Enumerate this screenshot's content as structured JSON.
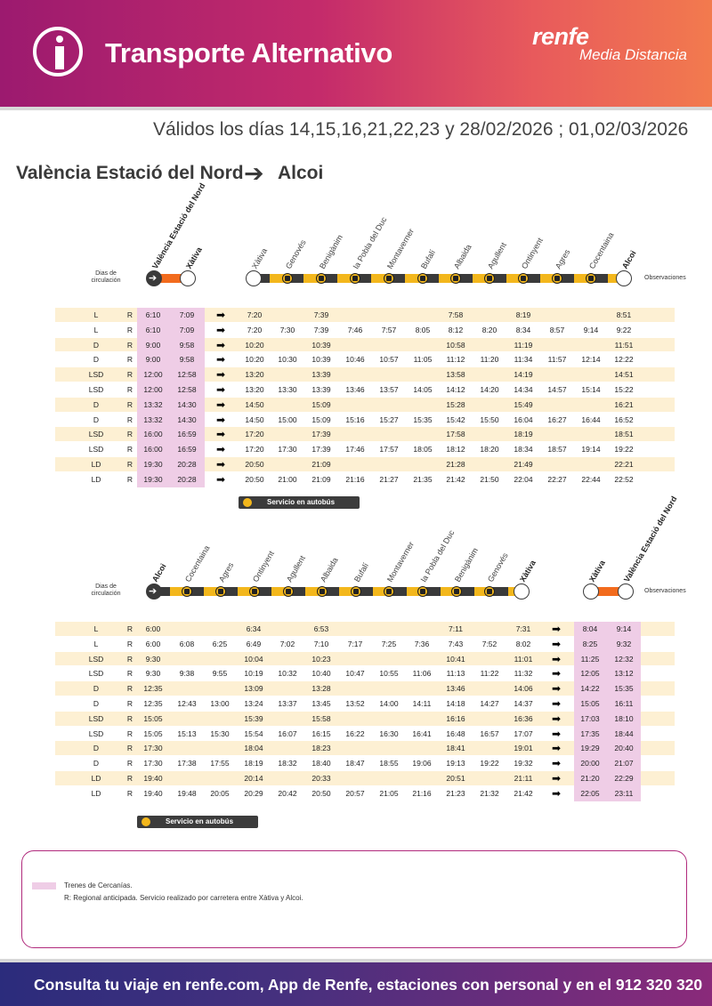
{
  "header": {
    "title": "Transporte Alternativo",
    "brand": "renfe",
    "brand_sub": "Media Distancia",
    "accent_colors": [
      "#9c1a6f",
      "#f27a4e"
    ]
  },
  "validity": "Válidos los días 14,15,16,21,22,23 y 28/02/2026 ; 01,02/03/2026",
  "route": {
    "origin": "València Estació del Nord",
    "destination": "Alcoi"
  },
  "labels": {
    "days": "Dias de circulación",
    "observations": "Observaciones",
    "bus_service": "Servicio en autobús"
  },
  "legend": {
    "pink_label": "Trenes de Cercanías.",
    "note": "R: Regional anticipada. Servicio realizado por carretera entre Xàtiva y Alcoi."
  },
  "footer": "Consulta tu viaje en renfe.com, App de Renfe, estaciones con personal y en el 912 320 320",
  "outbound": {
    "train_stations": [
      "València Estació del Nord",
      "Xàtiva"
    ],
    "bus_stations": [
      "Xàtiva",
      "Genovés",
      "Benigànim",
      "la Pobla del Duc",
      "Montaverner",
      "Bufalí",
      "Albaida",
      "Agullent",
      "Ontinyent",
      "Agres",
      "Cocentaina",
      "Alcoi"
    ],
    "rows": [
      {
        "days": "L",
        "type": "R",
        "train": [
          "6:10",
          "7:09"
        ],
        "bus": [
          "7:20",
          "",
          "7:39",
          "",
          "",
          "",
          "7:58",
          "",
          "8:19",
          "",
          "",
          "8:51"
        ]
      },
      {
        "days": "L",
        "type": "R",
        "train": [
          "6:10",
          "7:09"
        ],
        "bus": [
          "7:20",
          "7:30",
          "7:39",
          "7:46",
          "7:57",
          "8:05",
          "8:12",
          "8:20",
          "8:34",
          "8:57",
          "9:14",
          "9:22"
        ]
      },
      {
        "days": "D",
        "type": "R",
        "train": [
          "9:00",
          "9:58"
        ],
        "bus": [
          "10:20",
          "",
          "10:39",
          "",
          "",
          "",
          "10:58",
          "",
          "11:19",
          "",
          "",
          "11:51"
        ]
      },
      {
        "days": "D",
        "type": "R",
        "train": [
          "9:00",
          "9:58"
        ],
        "bus": [
          "10:20",
          "10:30",
          "10:39",
          "10:46",
          "10:57",
          "11:05",
          "11:12",
          "11:20",
          "11:34",
          "11:57",
          "12:14",
          "12:22"
        ]
      },
      {
        "days": "LSD",
        "type": "R",
        "train": [
          "12:00",
          "12:58"
        ],
        "bus": [
          "13:20",
          "",
          "13:39",
          "",
          "",
          "",
          "13:58",
          "",
          "14:19",
          "",
          "",
          "14:51"
        ]
      },
      {
        "days": "LSD",
        "type": "R",
        "train": [
          "12:00",
          "12:58"
        ],
        "bus": [
          "13:20",
          "13:30",
          "13:39",
          "13:46",
          "13:57",
          "14:05",
          "14:12",
          "14:20",
          "14:34",
          "14:57",
          "15:14",
          "15:22"
        ]
      },
      {
        "days": "D",
        "type": "R",
        "train": [
          "13:32",
          "14:30"
        ],
        "bus": [
          "14:50",
          "",
          "15:09",
          "",
          "",
          "",
          "15:28",
          "",
          "15:49",
          "",
          "",
          "16:21"
        ]
      },
      {
        "days": "D",
        "type": "R",
        "train": [
          "13:32",
          "14:30"
        ],
        "bus": [
          "14:50",
          "15:00",
          "15:09",
          "15:16",
          "15:27",
          "15:35",
          "15:42",
          "15:50",
          "16:04",
          "16:27",
          "16:44",
          "16:52"
        ]
      },
      {
        "days": "LSD",
        "type": "R",
        "train": [
          "16:00",
          "16:59"
        ],
        "bus": [
          "17:20",
          "",
          "17:39",
          "",
          "",
          "",
          "17:58",
          "",
          "18:19",
          "",
          "",
          "18:51"
        ]
      },
      {
        "days": "LSD",
        "type": "R",
        "train": [
          "16:00",
          "16:59"
        ],
        "bus": [
          "17:20",
          "17:30",
          "17:39",
          "17:46",
          "17:57",
          "18:05",
          "18:12",
          "18:20",
          "18:34",
          "18:57",
          "19:14",
          "19:22"
        ]
      },
      {
        "days": "LD",
        "type": "R",
        "train": [
          "19:30",
          "20:28"
        ],
        "bus": [
          "20:50",
          "",
          "21:09",
          "",
          "",
          "",
          "21:28",
          "",
          "21:49",
          "",
          "",
          "22:21"
        ]
      },
      {
        "days": "LD",
        "type": "R",
        "train": [
          "19:30",
          "20:28"
        ],
        "bus": [
          "20:50",
          "21:00",
          "21:09",
          "21:16",
          "21:27",
          "21:35",
          "21:42",
          "21:50",
          "22:04",
          "22:27",
          "22:44",
          "22:52"
        ]
      }
    ]
  },
  "inbound": {
    "bus_stations": [
      "Alcoi",
      "Cocentaina",
      "Agres",
      "Ontinyent",
      "Agullent",
      "Albaida",
      "Bufalí",
      "Montaverner",
      "la Pobla del Duc",
      "Benigànim",
      "Genovés",
      "Xàtiva"
    ],
    "train_stations": [
      "Xàtiva",
      "València Estació del Nord"
    ],
    "rows": [
      {
        "days": "L",
        "type": "R",
        "bus": [
          "6:00",
          "",
          "",
          "6:34",
          "",
          "6:53",
          "",
          "",
          "",
          "7:11",
          "",
          "7:31"
        ],
        "train": [
          "8:04",
          "9:14"
        ]
      },
      {
        "days": "L",
        "type": "R",
        "bus": [
          "6:00",
          "6:08",
          "6:25",
          "6:49",
          "7:02",
          "7:10",
          "7:17",
          "7:25",
          "7:36",
          "7:43",
          "7:52",
          "8:02"
        ],
        "train": [
          "8:25",
          "9:32"
        ]
      },
      {
        "days": "LSD",
        "type": "R",
        "bus": [
          "9:30",
          "",
          "",
          "10:04",
          "",
          "10:23",
          "",
          "",
          "",
          "10:41",
          "",
          "11:01"
        ],
        "train": [
          "11:25",
          "12:32"
        ]
      },
      {
        "days": "LSD",
        "type": "R",
        "bus": [
          "9:30",
          "9:38",
          "9:55",
          "10:19",
          "10:32",
          "10:40",
          "10:47",
          "10:55",
          "11:06",
          "11:13",
          "11:22",
          "11:32"
        ],
        "train": [
          "12:05",
          "13:12"
        ]
      },
      {
        "days": "D",
        "type": "R",
        "bus": [
          "12:35",
          "",
          "",
          "13:09",
          "",
          "13:28",
          "",
          "",
          "",
          "13:46",
          "",
          "14:06"
        ],
        "train": [
          "14:22",
          "15:35"
        ]
      },
      {
        "days": "D",
        "type": "R",
        "bus": [
          "12:35",
          "12:43",
          "13:00",
          "13:24",
          "13:37",
          "13:45",
          "13:52",
          "14:00",
          "14:11",
          "14:18",
          "14:27",
          "14:37"
        ],
        "train": [
          "15:05",
          "16:11"
        ]
      },
      {
        "days": "LSD",
        "type": "R",
        "bus": [
          "15:05",
          "",
          "",
          "15:39",
          "",
          "15:58",
          "",
          "",
          "",
          "16:16",
          "",
          "16:36"
        ],
        "train": [
          "17:03",
          "18:10"
        ]
      },
      {
        "days": "LSD",
        "type": "R",
        "bus": [
          "15:05",
          "15:13",
          "15:30",
          "15:54",
          "16:07",
          "16:15",
          "16:22",
          "16:30",
          "16:41",
          "16:48",
          "16:57",
          "17:07"
        ],
        "train": [
          "17:35",
          "18:44"
        ]
      },
      {
        "days": "D",
        "type": "R",
        "bus": [
          "17:30",
          "",
          "",
          "18:04",
          "",
          "18:23",
          "",
          "",
          "",
          "18:41",
          "",
          "19:01"
        ],
        "train": [
          "19:29",
          "20:40"
        ]
      },
      {
        "days": "D",
        "type": "R",
        "bus": [
          "17:30",
          "17:38",
          "17:55",
          "18:19",
          "18:32",
          "18:40",
          "18:47",
          "18:55",
          "19:06",
          "19:13",
          "19:22",
          "19:32"
        ],
        "train": [
          "20:00",
          "21:07"
        ]
      },
      {
        "days": "LD",
        "type": "R",
        "bus": [
          "19:40",
          "",
          "",
          "20:14",
          "",
          "20:33",
          "",
          "",
          "",
          "20:51",
          "",
          "21:11"
        ],
        "train": [
          "21:20",
          "22:29"
        ]
      },
      {
        "days": "LD",
        "type": "R",
        "bus": [
          "19:40",
          "19:48",
          "20:05",
          "20:29",
          "20:42",
          "20:50",
          "20:57",
          "21:05",
          "21:16",
          "21:23",
          "21:32",
          "21:42"
        ],
        "train": [
          "22:05",
          "23:11"
        ]
      }
    ]
  }
}
